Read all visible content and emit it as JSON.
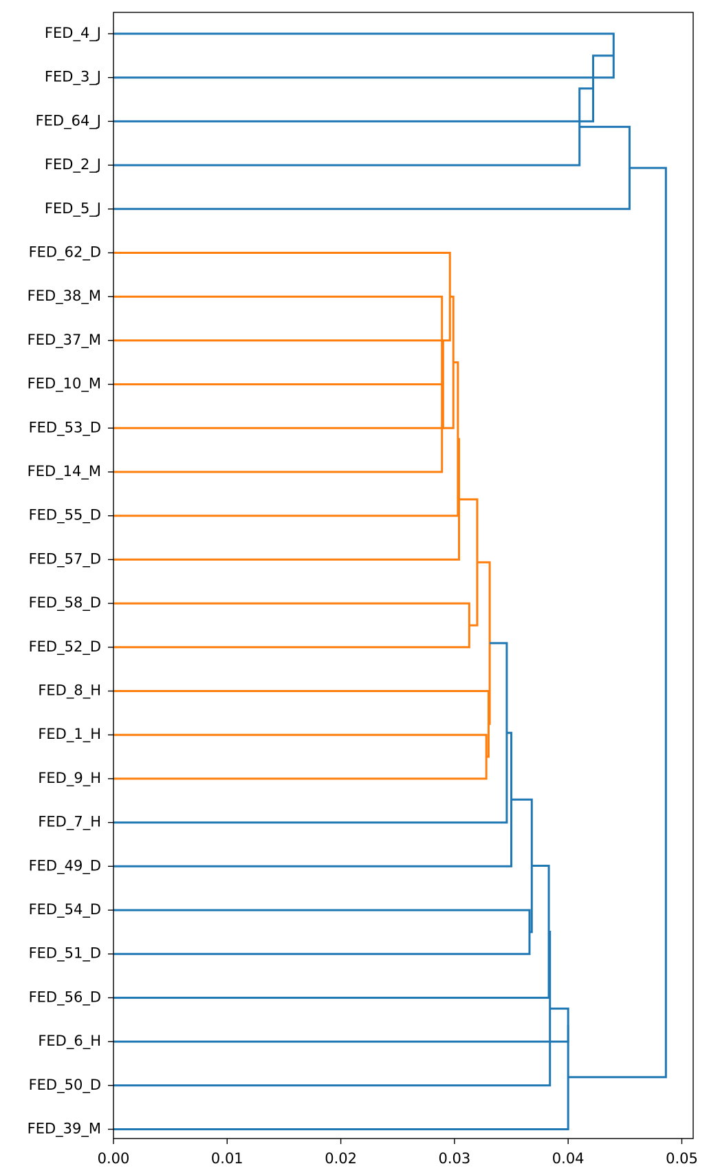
{
  "chart_data": {
    "type": "dendrogram",
    "orientation": "horizontal",
    "title": "",
    "xlabel": "",
    "ylabel": "",
    "xlim": [
      0,
      0.051
    ],
    "xticks": [
      0.0,
      0.01,
      0.02,
      0.03,
      0.04,
      0.05
    ],
    "xtick_labels": [
      "0.00",
      "0.01",
      "0.02",
      "0.03",
      "0.04",
      "0.05"
    ],
    "grid": false,
    "colors": {
      "cluster": "#ff7f0e",
      "above_threshold": "#1f77b4"
    },
    "leaves": [
      "FED_4_J",
      "FED_3_J",
      "FED_64_J",
      "FED_2_J",
      "FED_5_J",
      "FED_62_D",
      "FED_38_M",
      "FED_37_M",
      "FED_10_M",
      "FED_53_D",
      "FED_14_M",
      "FED_55_D",
      "FED_57_D",
      "FED_58_D",
      "FED_52_D",
      "FED_8_H",
      "FED_1_H",
      "FED_9_H",
      "FED_7_H",
      "FED_49_D",
      "FED_54_D",
      "FED_51_D",
      "FED_56_D",
      "FED_6_H",
      "FED_50_D",
      "FED_39_M"
    ],
    "merges": [
      {
        "id": "a",
        "left": "FED_10_M",
        "right": "FED_14_M",
        "height": 0.0289,
        "color": "cluster"
      },
      {
        "id": "b",
        "left": "FED_37_M",
        "right": "a",
        "height": 0.029,
        "color": "cluster"
      },
      {
        "id": "c",
        "left": "FED_38_M",
        "right": "b",
        "height": 0.0289,
        "color": "cluster"
      },
      {
        "id": "d",
        "left": "FED_62_D",
        "right": "c",
        "height": 0.0296,
        "color": "cluster"
      },
      {
        "id": "e",
        "left": "d",
        "right": "FED_53_D",
        "height": 0.0299,
        "color": "cluster"
      },
      {
        "id": "f",
        "left": "e",
        "right": "FED_55_D",
        "height": 0.0303,
        "color": "cluster"
      },
      {
        "id": "g",
        "left": "f",
        "right": "FED_57_D",
        "height": 0.0304,
        "color": "cluster"
      },
      {
        "id": "h",
        "left": "FED_58_D",
        "right": "FED_52_D",
        "height": 0.0313,
        "color": "cluster"
      },
      {
        "id": "i",
        "left": "g",
        "right": "h",
        "height": 0.032,
        "color": "cluster"
      },
      {
        "id": "j",
        "left": "FED_1_H",
        "right": "FED_9_H",
        "height": 0.0328,
        "color": "cluster"
      },
      {
        "id": "k",
        "left": "FED_8_H",
        "right": "j",
        "height": 0.033,
        "color": "cluster"
      },
      {
        "id": "l",
        "left": "i",
        "right": "k",
        "height": 0.0331,
        "color": "cluster"
      },
      {
        "id": "m",
        "left": "l",
        "right": "FED_7_H",
        "height": 0.0346,
        "color": "above_threshold"
      },
      {
        "id": "n",
        "left": "m",
        "right": "FED_49_D",
        "height": 0.035,
        "color": "above_threshold"
      },
      {
        "id": "o",
        "left": "FED_54_D",
        "right": "FED_51_D",
        "height": 0.0366,
        "color": "above_threshold"
      },
      {
        "id": "p",
        "left": "n",
        "right": "o",
        "height": 0.0368,
        "color": "above_threshold"
      },
      {
        "id": "q",
        "left": "p",
        "right": "FED_56_D",
        "height": 0.0383,
        "color": "above_threshold"
      },
      {
        "id": "r",
        "left": "q",
        "right": "FED_50_D",
        "height": 0.0384,
        "color": "above_threshold"
      },
      {
        "id": "s",
        "left": "FED_6_H",
        "right": "r",
        "height": 0.04,
        "color": "above_threshold"
      },
      {
        "id": "t",
        "left": "s",
        "right": "FED_39_M",
        "height": 0.04,
        "color": "above_threshold"
      },
      {
        "id": "u",
        "left": "FED_4_J",
        "right": "FED_3_J",
        "height": 0.044,
        "color": "above_threshold"
      },
      {
        "id": "v",
        "left": "u",
        "right": "FED_64_J",
        "height": 0.0422,
        "color": "above_threshold"
      },
      {
        "id": "w",
        "left": "v",
        "right": "FED_2_J",
        "height": 0.041,
        "color": "above_threshold"
      },
      {
        "id": "x",
        "left": "w",
        "right": "FED_5_J",
        "height": 0.0454,
        "color": "above_threshold"
      },
      {
        "id": "y",
        "left": "x",
        "right": "t",
        "height": 0.0486,
        "color": "above_threshold"
      }
    ]
  }
}
